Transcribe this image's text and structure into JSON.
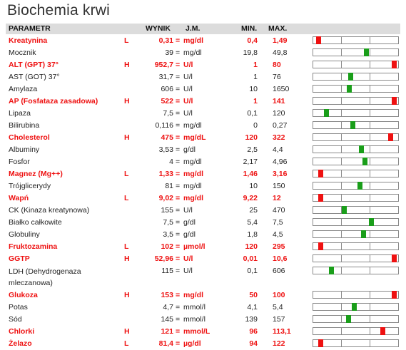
{
  "page": {
    "title": "Biochemia krwi"
  },
  "header": {
    "parametr": "PARAMETR",
    "wynik": "WYNIK",
    "jm": "J.M.",
    "min": "MIN.",
    "max": "MAX."
  },
  "colors": {
    "abnormal": "#ee1111",
    "normal_marker": "#1a9e1a",
    "header_bg": "#dcdcdc"
  },
  "rows": [
    {
      "name": "Kreatynina",
      "flag": "L",
      "value": "0,31",
      "eq": "=",
      "unit": "mg/dl",
      "min": "0,4",
      "max": "1,49",
      "abnormal": true,
      "level": 0.04
    },
    {
      "name": "Mocznik",
      "flag": "",
      "value": "39",
      "eq": "=",
      "unit": "mg/dl",
      "min": "19,8",
      "max": "49,8",
      "abnormal": false,
      "level": 0.63
    },
    {
      "name": "ALT (GPT) 37°",
      "flag": "H",
      "value": "952,7",
      "eq": "=",
      "unit": "U/l",
      "min": "1",
      "max": "80",
      "abnormal": true,
      "level": 0.98
    },
    {
      "name": "AST (GOT) 37°",
      "flag": "",
      "value": "31,7",
      "eq": "=",
      "unit": "U/l",
      "min": "1",
      "max": "76",
      "abnormal": false,
      "level": 0.44
    },
    {
      "name": "Amylaza",
      "flag": "",
      "value": "606",
      "eq": "=",
      "unit": "U/l",
      "min": "10",
      "max": "1650",
      "abnormal": false,
      "level": 0.42
    },
    {
      "name": "AP (Fosfataza zasadowa)",
      "flag": "H",
      "value": "522",
      "eq": "=",
      "unit": "U/l",
      "min": "1",
      "max": "141",
      "abnormal": true,
      "level": 0.98
    },
    {
      "name": "Lipaza",
      "flag": "",
      "value": "7,5",
      "eq": "=",
      "unit": "U/l",
      "min": "0,1",
      "max": "120",
      "abnormal": false,
      "level": 0.13
    },
    {
      "name": "Bilirubina",
      "flag": "",
      "value": "0,116",
      "eq": "=",
      "unit": "mg/dl",
      "min": "0",
      "max": "0,27",
      "abnormal": false,
      "level": 0.46
    },
    {
      "name": "Cholesterol",
      "flag": "H",
      "value": "475",
      "eq": "=",
      "unit": "mg/dL",
      "min": "120",
      "max": "322",
      "abnormal": true,
      "level": 0.94
    },
    {
      "name": "Albuminy",
      "flag": "",
      "value": "3,53",
      "eq": "=",
      "unit": "g/dl",
      "min": "2,5",
      "max": "4,4",
      "abnormal": false,
      "level": 0.57
    },
    {
      "name": "Fosfor",
      "flag": "",
      "value": "4",
      "eq": "=",
      "unit": "mg/dl",
      "min": "2,17",
      "max": "4,96",
      "abnormal": false,
      "level": 0.62
    },
    {
      "name": "Magnez (Mg++)",
      "flag": "L",
      "value": "1,33",
      "eq": "=",
      "unit": "mg/dl",
      "min": "1,46",
      "max": "3,16",
      "abnormal": true,
      "level": 0.06
    },
    {
      "name": "Trójglicerydy",
      "flag": "",
      "value": "81",
      "eq": "=",
      "unit": "mg/dl",
      "min": "10",
      "max": "150",
      "abnormal": false,
      "level": 0.55
    },
    {
      "name": "Wapń",
      "flag": "L",
      "value": "9,02",
      "eq": "=",
      "unit": "mg/dl",
      "min": "9,22",
      "max": "12",
      "abnormal": true,
      "level": 0.06
    },
    {
      "name": "CK (Kinaza kreatynowa)",
      "flag": "",
      "value": "155",
      "eq": "=",
      "unit": "U/l",
      "min": "25",
      "max": "470",
      "abnormal": false,
      "level": 0.36
    },
    {
      "name": "Białko całkowite",
      "flag": "",
      "value": "7,5",
      "eq": "=",
      "unit": "g/dl",
      "min": "5,4",
      "max": "7,5",
      "abnormal": false,
      "level": 0.7
    },
    {
      "name": "Globuliny",
      "flag": "",
      "value": "3,5",
      "eq": "=",
      "unit": "g/dl",
      "min": "1,8",
      "max": "4,5",
      "abnormal": false,
      "level": 0.6
    },
    {
      "name": "Fruktozamina",
      "flag": "L",
      "value": "102",
      "eq": "=",
      "unit": "µmol/l",
      "min": "120",
      "max": "295",
      "abnormal": true,
      "level": 0.06
    },
    {
      "name": "GGTP",
      "flag": "H",
      "value": "52,96",
      "eq": "=",
      "unit": "U/l",
      "min": "0,01",
      "max": "10,6",
      "abnormal": true,
      "level": 0.98
    },
    {
      "name": "LDH (Dehydrogenaza mleczanowa)",
      "flag": "",
      "value": "115",
      "eq": "=",
      "unit": "U/l",
      "min": "0,1",
      "max": "606",
      "abnormal": false,
      "level": 0.2,
      "tall": true
    },
    {
      "name": "Glukoza",
      "flag": "H",
      "value": "153",
      "eq": "=",
      "unit": "mg/dl",
      "min": "50",
      "max": "100",
      "abnormal": true,
      "level": 0.98
    },
    {
      "name": "Potas",
      "flag": "",
      "value": "4,7",
      "eq": "=",
      "unit": "mmol/l",
      "min": "4,1",
      "max": "5,4",
      "abnormal": false,
      "level": 0.48
    },
    {
      "name": "Sód",
      "flag": "",
      "value": "145",
      "eq": "=",
      "unit": "mmol/l",
      "min": "139",
      "max": "157",
      "abnormal": false,
      "level": 0.41
    },
    {
      "name": "Chlorki",
      "flag": "H",
      "value": "121",
      "eq": "=",
      "unit": "mmol/L",
      "min": "96",
      "max": "113,1",
      "abnormal": true,
      "level": 0.84
    },
    {
      "name": "Żelazo",
      "flag": "L",
      "value": "81,4",
      "eq": "=",
      "unit": "µg/dl",
      "min": "94",
      "max": "122",
      "abnormal": true,
      "level": 0.06
    }
  ]
}
